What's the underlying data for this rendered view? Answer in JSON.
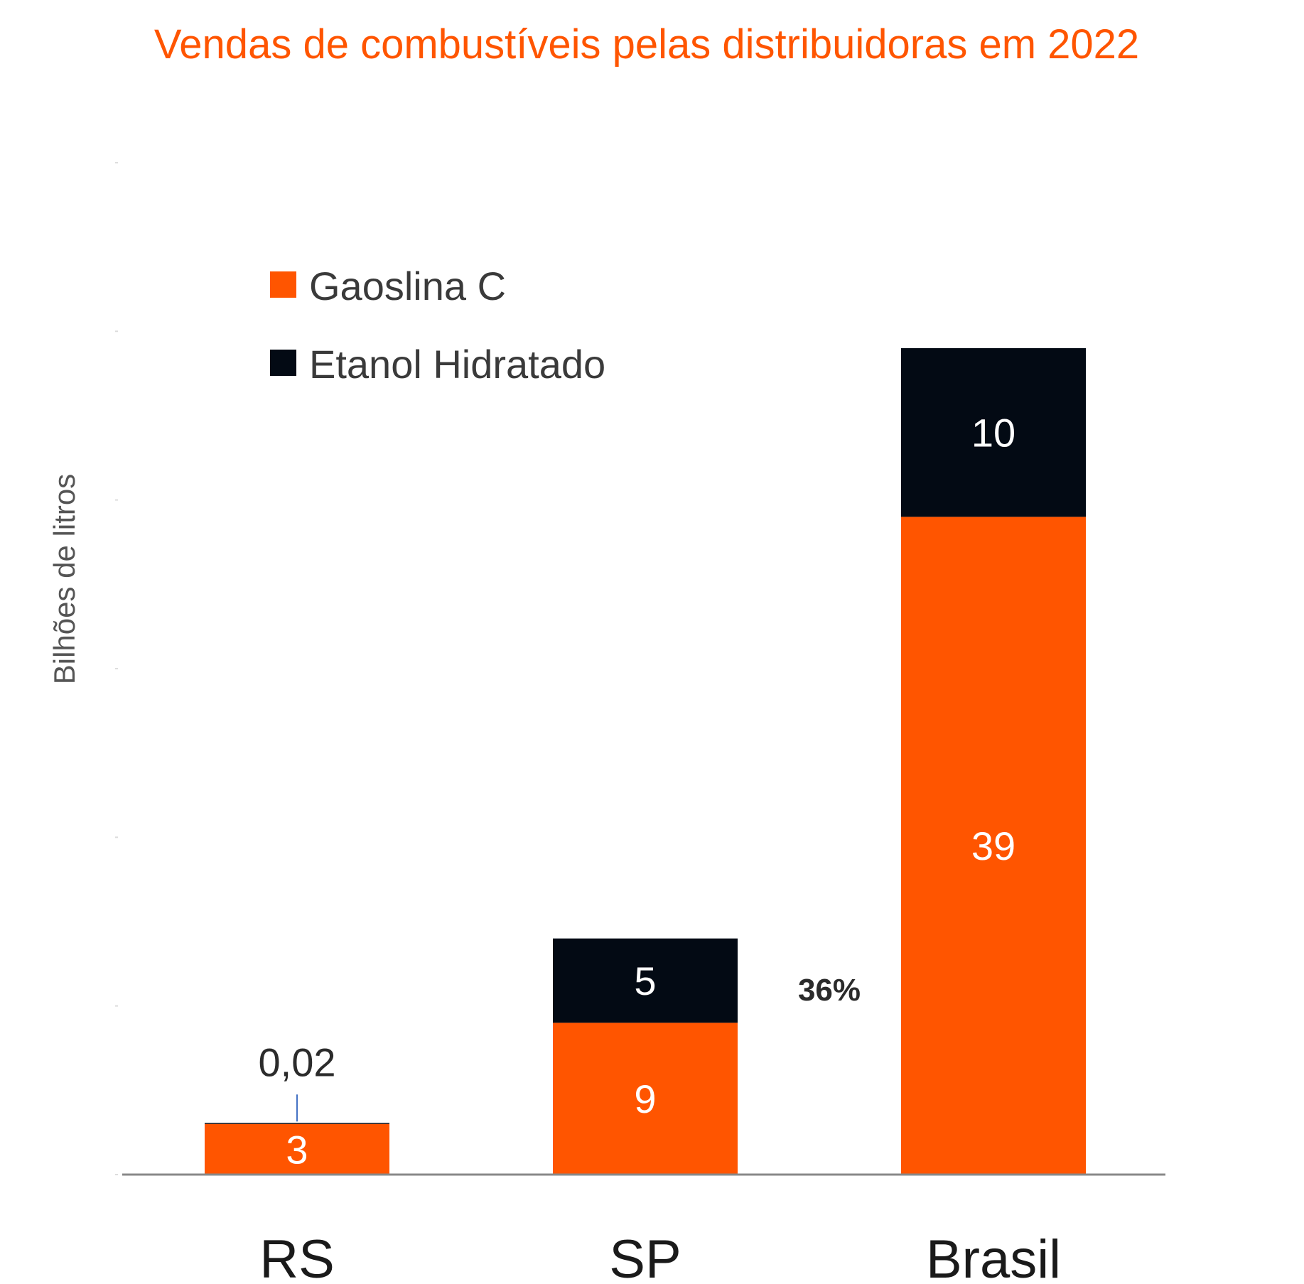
{
  "chart_data": {
    "type": "bar",
    "stacked": true,
    "title": "Vendas de combustíveis pelas distribuidoras em 2022",
    "ylabel": "Bilhões de litros",
    "categories": [
      "RS",
      "SP",
      "Brasil"
    ],
    "series": [
      {
        "name": "Gaoslina C",
        "values": [
          3,
          9,
          39
        ],
        "labels": [
          "3",
          "9",
          "39"
        ]
      },
      {
        "name": "Etanol Hidratado",
        "values": [
          0.02,
          5,
          10
        ],
        "labels": [
          "0,02",
          "5",
          "10"
        ]
      }
    ],
    "annotations": [
      {
        "text": "36%",
        "between": [
          "SP",
          "Brasil"
        ]
      }
    ],
    "ylim": [
      0,
      60
    ],
    "grid": false,
    "legend_position": "top-left",
    "colors": {
      "title": "#FF5500",
      "gasolina": "#FF5500",
      "etanol": "#030A14",
      "axis": "#888888",
      "text": "#2B2B2B",
      "leader": "#4472C4"
    }
  }
}
